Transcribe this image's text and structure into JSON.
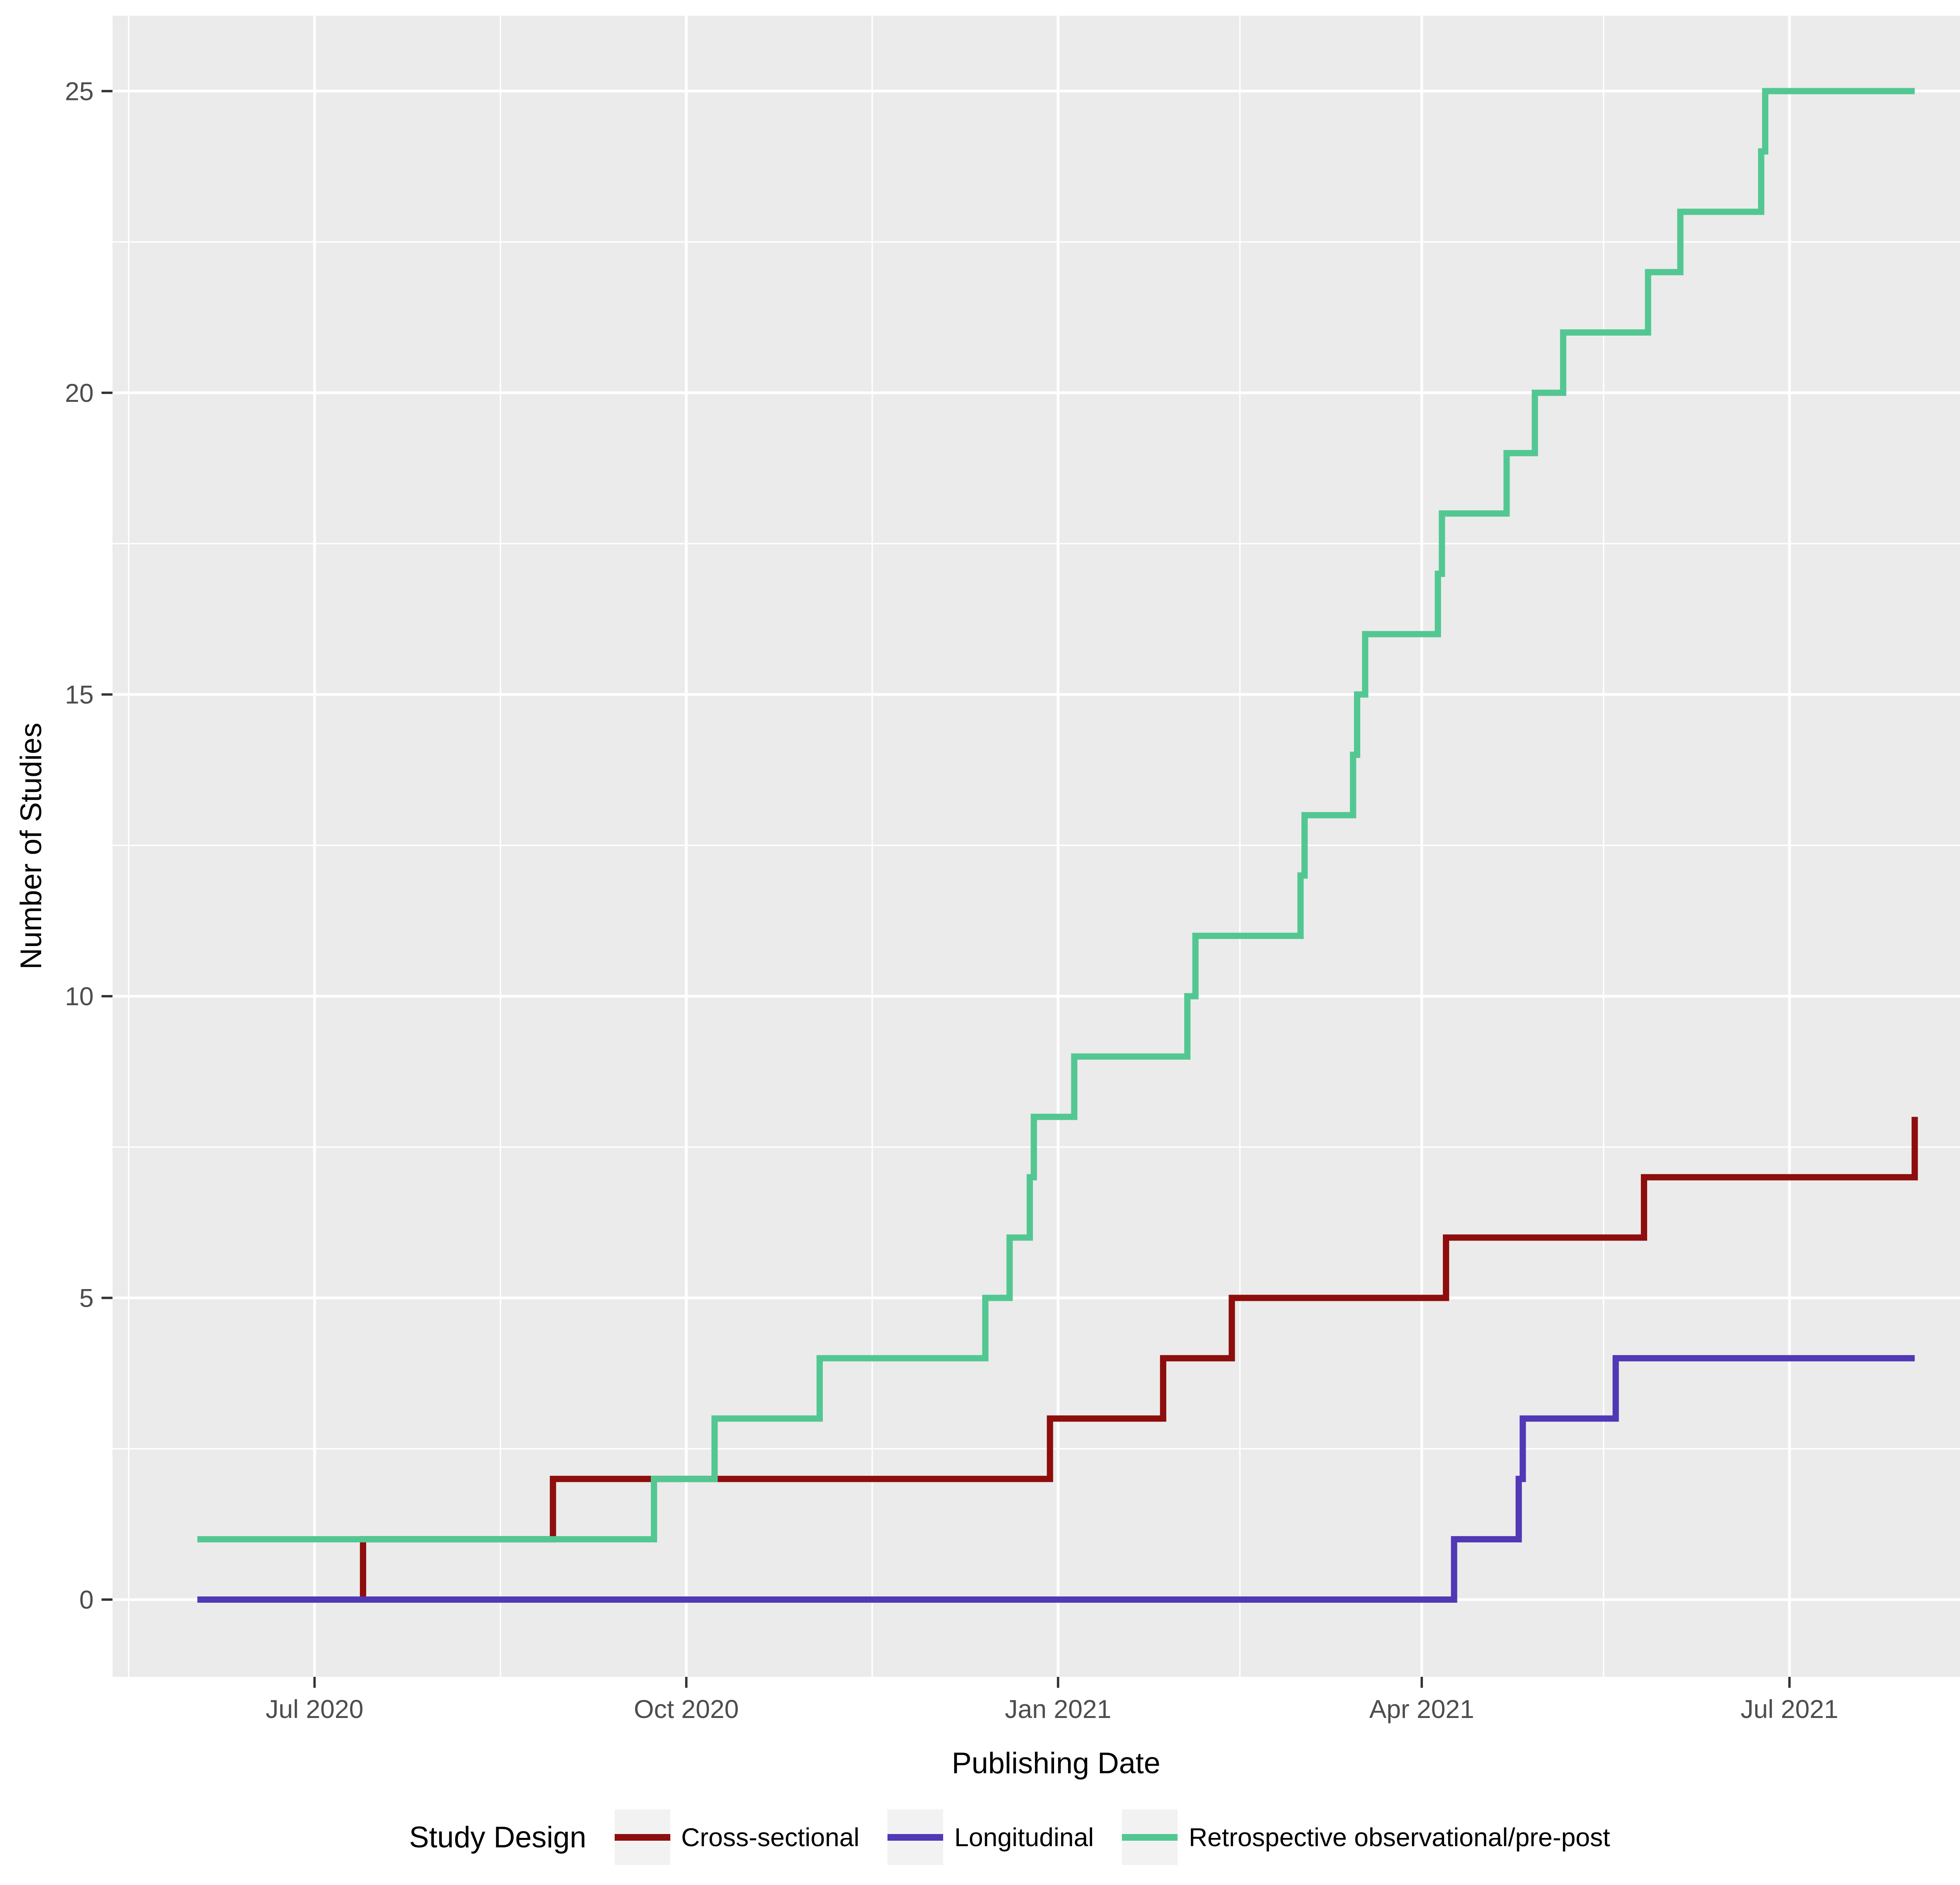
{
  "figure": {
    "background": "#FFFFFF",
    "panel_background": "#EBEBEB",
    "grid_color": "#FFFFFF",
    "tick_mark_color": "#333333",
    "tick_label_color": "#4D4D4D",
    "title_color": "#000000"
  },
  "legend": {
    "title": "Study Design",
    "entries": [
      {
        "label": "Cross-sectional",
        "color": "#8E0D0D"
      },
      {
        "label": "Longitudinal",
        "color": "#5138B5"
      },
      {
        "label": "Retrospective observational/pre-post",
        "color": "#53C792"
      }
    ]
  },
  "chart_data": {
    "type": "line",
    "subtype": "cumulative-step",
    "title": "",
    "xlabel": "Publishing Date",
    "ylabel": "Number of Studies",
    "grid": "on",
    "legend_position": "bottom",
    "x_domain": [
      "2020-05-12",
      "2021-08-22"
    ],
    "y_domain": [
      -1.28,
      26.25
    ],
    "x_ticks": [
      {
        "label": "Jul 2020",
        "date": "2020-07-01"
      },
      {
        "label": "Oct 2020",
        "date": "2020-10-01"
      },
      {
        "label": "Jan 2021",
        "date": "2021-01-01"
      },
      {
        "label": "Apr 2021",
        "date": "2021-04-01"
      },
      {
        "label": "Jul 2021",
        "date": "2021-07-01"
      }
    ],
    "x_minor_gridline_dates": [
      "2020-05-16",
      "2020-08-16",
      "2020-11-16",
      "2021-02-15",
      "2021-05-16",
      "2021-08-16"
    ],
    "y_ticks": [
      {
        "label": "0",
        "value": 0
      },
      {
        "label": "5",
        "value": 5
      },
      {
        "label": "10",
        "value": 10
      },
      {
        "label": "15",
        "value": 15
      },
      {
        "label": "20",
        "value": 20
      },
      {
        "label": "25",
        "value": 25
      }
    ],
    "y_minor_gridline_values": [
      2.5,
      7.5,
      12.5,
      17.5,
      22.5
    ],
    "series": [
      {
        "name": "Cross-sectional",
        "color": "#8E0D0D",
        "start_date": "2020-06-02",
        "start_value": 0,
        "end_date": "2021-08-01",
        "steps": [
          [
            "2020-07-13",
            1
          ],
          [
            "2020-08-29",
            2
          ],
          [
            "2020-12-30",
            3
          ],
          [
            "2021-01-27",
            4
          ],
          [
            "2021-02-13",
            5
          ],
          [
            "2021-04-07",
            6
          ],
          [
            "2021-05-26",
            7
          ],
          [
            "2021-08-01",
            8
          ]
        ]
      },
      {
        "name": "Longitudinal",
        "color": "#5138B5",
        "start_date": "2020-06-02",
        "start_value": 0,
        "end_date": "2021-08-01",
        "steps": [
          [
            "2021-04-09",
            1
          ],
          [
            "2021-04-25",
            2
          ],
          [
            "2021-04-26",
            3
          ],
          [
            "2021-05-19",
            4
          ]
        ]
      },
      {
        "name": "Retrospective observational/pre-post",
        "color": "#53C792",
        "start_date": "2020-06-02",
        "start_value": 1,
        "end_date": "2021-08-01",
        "steps": [
          [
            "2020-09-23",
            2
          ],
          [
            "2020-10-08",
            3
          ],
          [
            "2020-11-03",
            4
          ],
          [
            "2020-12-14",
            5
          ],
          [
            "2020-12-20",
            6
          ],
          [
            "2020-12-25",
            7
          ],
          [
            "2020-12-26",
            8
          ],
          [
            "2021-01-05",
            9
          ],
          [
            "2021-02-02",
            10
          ],
          [
            "2021-02-04",
            11
          ],
          [
            "2021-03-02",
            12
          ],
          [
            "2021-03-03",
            13
          ],
          [
            "2021-03-15",
            14
          ],
          [
            "2021-03-16",
            15
          ],
          [
            "2021-03-18",
            16
          ],
          [
            "2021-04-05",
            17
          ],
          [
            "2021-04-06",
            18
          ],
          [
            "2021-04-22",
            19
          ],
          [
            "2021-04-29",
            20
          ],
          [
            "2021-05-06",
            21
          ],
          [
            "2021-05-27",
            22
          ],
          [
            "2021-06-04",
            23
          ],
          [
            "2021-06-24",
            24
          ],
          [
            "2021-06-25",
            25
          ]
        ]
      }
    ]
  }
}
